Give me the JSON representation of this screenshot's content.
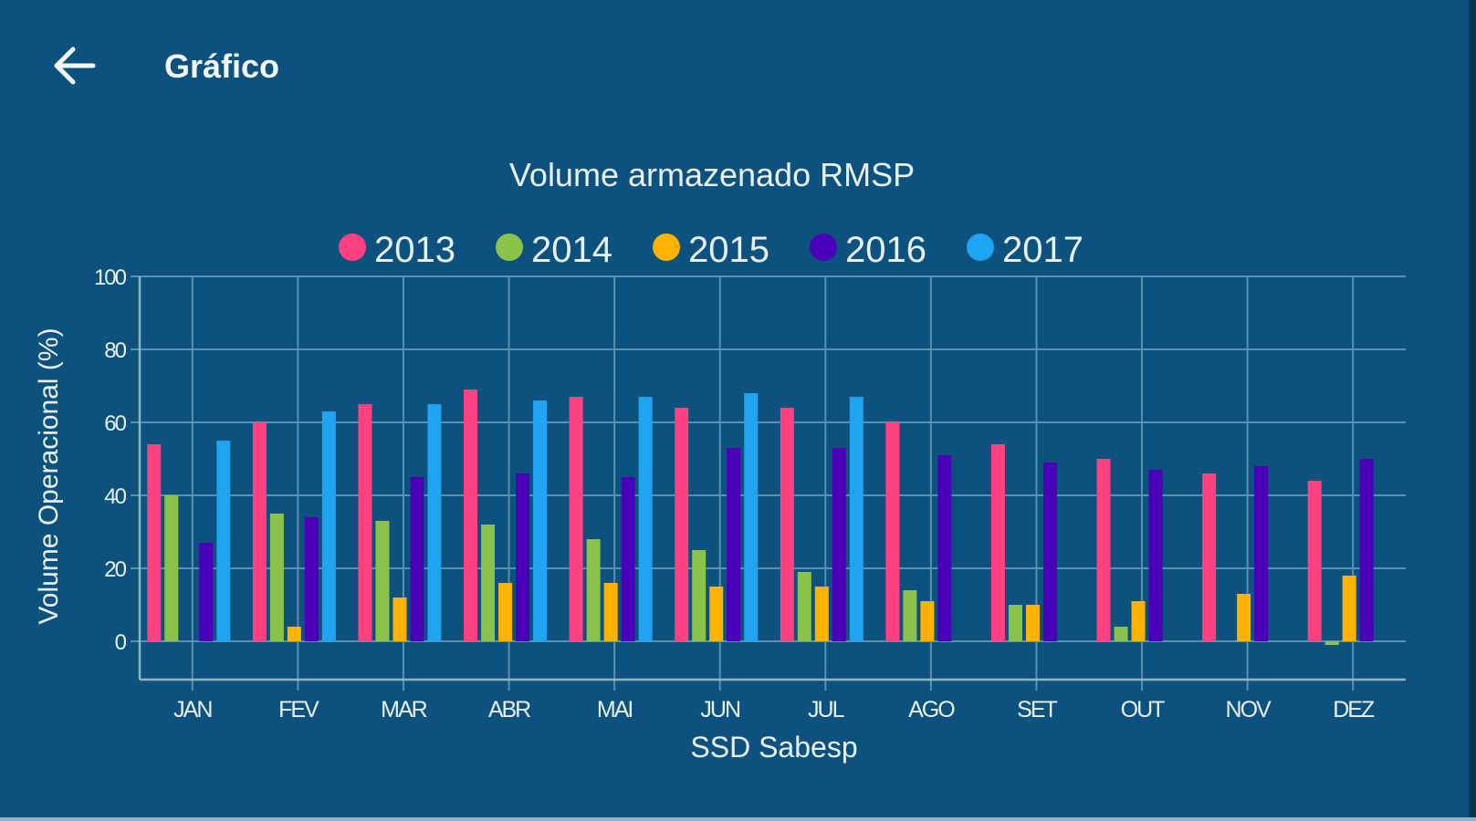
{
  "appbar": {
    "title": "Gráfico",
    "back_icon": "arrow-left-icon"
  },
  "colors": {
    "background": "#0d527e",
    "grid": "#5c8fb0",
    "text": "#e8f1f7"
  },
  "chart_data": {
    "type": "bar",
    "title": "Volume armazenado RMSP",
    "xlabel": "SSD Sabesp",
    "ylabel": "Volume Operacional (%)",
    "ylim": [
      -10,
      100
    ],
    "yticks": [
      0,
      20,
      40,
      60,
      80,
      100
    ],
    "grid": true,
    "legend_position": "top",
    "categories": [
      "JAN",
      "FEV",
      "MAR",
      "ABR",
      "MAI",
      "JUN",
      "JUL",
      "AGO",
      "SET",
      "OUT",
      "NOV",
      "DEZ"
    ],
    "series": [
      {
        "name": "2013",
        "color": "#ff4081",
        "values": [
          54,
          60,
          65,
          69,
          67,
          64,
          64,
          60,
          54,
          50,
          46,
          44
        ]
      },
      {
        "name": "2014",
        "color": "#8bc34a",
        "values": [
          40,
          35,
          33,
          32,
          28,
          25,
          19,
          14,
          10,
          4,
          null,
          -1
        ]
      },
      {
        "name": "2015",
        "color": "#ffb300",
        "values": [
          null,
          4,
          12,
          16,
          16,
          15,
          15,
          11,
          10,
          11,
          13,
          18
        ]
      },
      {
        "name": "2016",
        "color": "#4a00b8",
        "values": [
          27,
          34,
          45,
          46,
          45,
          53,
          53,
          51,
          49,
          47,
          48,
          50
        ]
      },
      {
        "name": "2017",
        "color": "#1ea4f0",
        "values": [
          55,
          63,
          65,
          66,
          67,
          68,
          67,
          null,
          null,
          null,
          null,
          null
        ]
      }
    ]
  }
}
